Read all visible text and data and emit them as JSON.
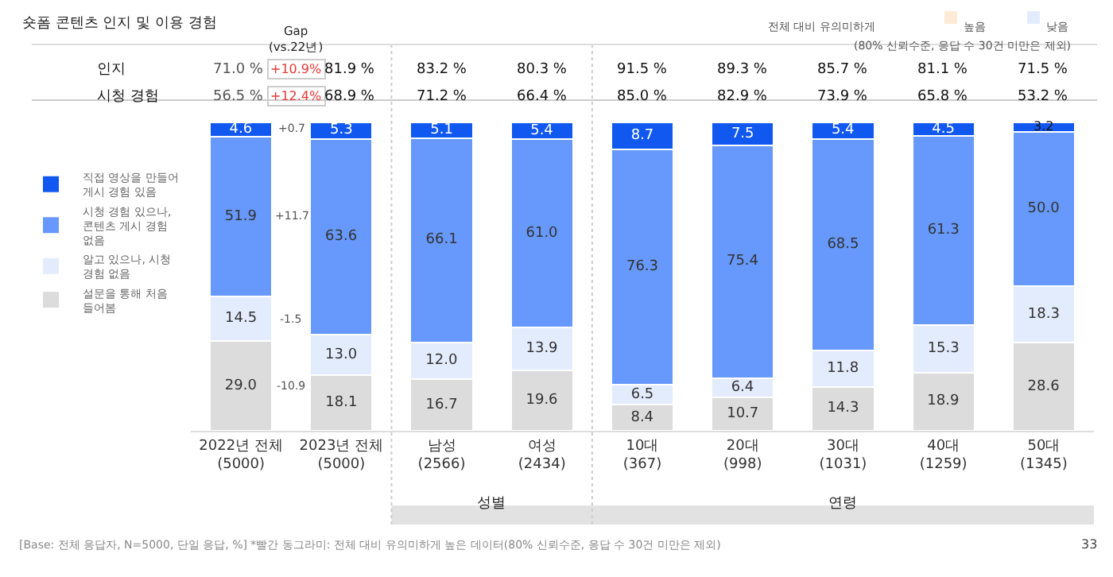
{
  "chart_data": {
    "type": "bar",
    "stacked": true,
    "title": "숏폼 콘텐츠 인지 및 이용 경험",
    "categories": [
      "2022년 전체\n(5000)",
      "2023년 전체\n(5000)",
      "남성\n(2566)",
      "여성\n(2434)",
      "10대\n(367)",
      "20대\n(998)",
      "30대\n(1031)",
      "40대\n(1259)",
      "50대\n(1345)"
    ],
    "series": [
      {
        "name": "설문을 통해 처음 들어봄",
        "color": "#dcdcdc",
        "values": [
          29.0,
          18.1,
          16.7,
          19.6,
          8.4,
          10.7,
          14.3,
          18.9,
          28.6
        ],
        "value_labels": [
          "29.0",
          "18.1",
          "16.7",
          "19.6",
          "8.4",
          "10.7",
          "14.3",
          "18.9",
          "28.6"
        ]
      },
      {
        "name": "알고 있으나, 시청 경험 없음",
        "color": "#e3ecfd",
        "values": [
          14.5,
          13.0,
          12.0,
          13.9,
          6.5,
          6.4,
          11.8,
          15.3,
          18.3
        ],
        "value_labels": [
          "14.5",
          "13.0",
          "12.0",
          "13.9",
          "6.5",
          "6.4",
          "11.8",
          "15.3",
          "18.3"
        ]
      },
      {
        "name": "시청 경험 있으나, 콘텐츠 게시 경험 없음",
        "color": "#6699fb",
        "values": [
          51.9,
          63.6,
          66.1,
          61.0,
          76.3,
          75.4,
          68.5,
          61.3,
          50.0
        ],
        "value_labels": [
          "51.9",
          "63.6",
          "66.1",
          "61.0",
          "76.3",
          "75.4",
          "68.5",
          "61.3",
          "50.0"
        ]
      },
      {
        "name": "직접 영상을 만들어 게시 경험 있음",
        "color": "#1158f0",
        "values": [
          4.6,
          5.3,
          5.1,
          5.4,
          8.7,
          7.5,
          5.4,
          4.5,
          3.2
        ],
        "value_labels": [
          "4.6",
          "5.3",
          "5.1",
          "5.4",
          "8.7",
          "7.5",
          "5.4",
          "4.5",
          "3.2"
        ]
      }
    ],
    "ylim": [
      0,
      100
    ],
    "tick_labels": "x",
    "legend": "left",
    "annotations": [
      "Gap\n(vs.22년)",
      "인지",
      "71.0 %",
      "+10.9%",
      "81.9 %",
      "83.2 %",
      "80.3 %",
      "91.5 %",
      "89.3 %",
      "85.7 %",
      "81.1 %",
      "71.5 %",
      "시청 경험",
      "56.5 %",
      "+12.4%",
      "68.9 %",
      "71.2 %",
      "66.4 %",
      "85.0 %",
      "82.9 %",
      "73.9 %",
      "65.8 %",
      "53.2 %",
      "-10.9",
      "-1.5",
      "+11.7",
      "+0.7",
      "성별",
      "연령",
      "전체 대비 유의미하게",
      "높음",
      "낮음",
      "(80% 신뢰수준, 응답 수 30건 미만은 제외)",
      "[Base: 전체 응답자, N=5000, 단일 응답, %] *빨간 동그라미: 전체 대비 유의미하게 높은 데이터(80% 신뢰수준, 응답 수 30건 미만은 제외)",
      "33"
    ]
  }
}
